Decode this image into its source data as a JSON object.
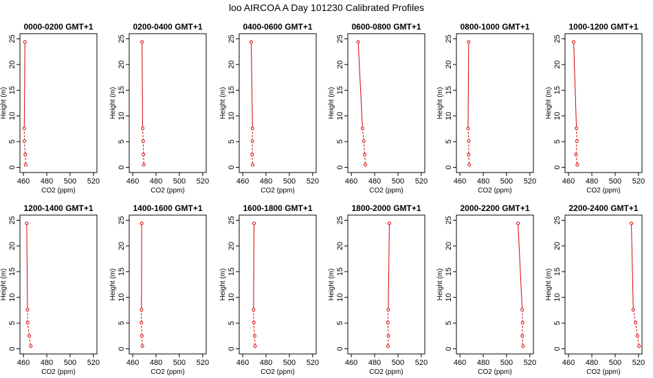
{
  "title": "loo AIRCOA A  Day 101230  Calibrated Profiles",
  "colors": {
    "series": "#d40000",
    "axis": "#000000",
    "background": "#ffffff"
  },
  "chart_data": [
    {
      "type": "line",
      "title": "0000-0200 GMT+1",
      "xlabel": "CO2 (ppm)",
      "ylabel": "Height (m)",
      "xlim": [
        457,
        523
      ],
      "ylim": [
        -1,
        26
      ],
      "xticks": [
        460,
        480,
        500,
        520
      ],
      "yticks": [
        0,
        5,
        10,
        15,
        20,
        25
      ],
      "x": [
        461.3,
        460.7,
        460.8,
        461.6,
        461.9
      ],
      "y": [
        24.4,
        7.6,
        5.1,
        2.5,
        0.5
      ]
    },
    {
      "type": "line",
      "title": "0200-0400 GMT+1",
      "xlabel": "CO2 (ppm)",
      "ylabel": "Height (m)",
      "xlim": [
        457,
        523
      ],
      "ylim": [
        -1,
        26
      ],
      "xticks": [
        460,
        480,
        500,
        520
      ],
      "yticks": [
        0,
        5,
        10,
        15,
        20,
        25
      ],
      "x": [
        468.0,
        468.5,
        469.0,
        469.2,
        469.5
      ],
      "y": [
        24.4,
        7.6,
        5.1,
        2.5,
        0.5
      ]
    },
    {
      "type": "line",
      "title": "0400-0600 GMT+1",
      "xlabel": "CO2 (ppm)",
      "ylabel": "Height (m)",
      "xlim": [
        457,
        523
      ],
      "ylim": [
        -1,
        26
      ],
      "xticks": [
        460,
        480,
        500,
        520
      ],
      "yticks": [
        0,
        5,
        10,
        15,
        20,
        25
      ],
      "x": [
        467.3,
        468.4,
        468.3,
        468.1,
        468.5
      ],
      "y": [
        24.4,
        7.6,
        5.1,
        2.5,
        0.5
      ]
    },
    {
      "type": "line",
      "title": "0600-0800 GMT+1",
      "xlabel": "CO2 (ppm)",
      "ylabel": "Height (m)",
      "xlim": [
        457,
        523
      ],
      "ylim": [
        -1,
        26
      ],
      "xticks": [
        460,
        480,
        500,
        520
      ],
      "yticks": [
        0,
        5,
        10,
        15,
        20,
        25
      ],
      "x": [
        465.9,
        469.6,
        470.7,
        471.5,
        472.0
      ],
      "y": [
        24.4,
        7.6,
        5.1,
        2.5,
        0.5
      ]
    },
    {
      "type": "line",
      "title": "0800-1000 GMT+1",
      "xlabel": "CO2 (ppm)",
      "ylabel": "Height (m)",
      "xlim": [
        457,
        523
      ],
      "ylim": [
        -1,
        26
      ],
      "xticks": [
        460,
        480,
        500,
        520
      ],
      "yticks": [
        0,
        5,
        10,
        15,
        20,
        25
      ],
      "x": [
        467.5,
        467.0,
        467.6,
        467.5,
        468.0
      ],
      "y": [
        24.4,
        7.6,
        5.1,
        2.5,
        0.5
      ]
    },
    {
      "type": "line",
      "title": "1000-1200 GMT+1",
      "xlabel": "CO2 (ppm)",
      "ylabel": "Height (m)",
      "xlim": [
        457,
        523
      ],
      "ylim": [
        -1,
        26
      ],
      "xticks": [
        460,
        480,
        500,
        520
      ],
      "yticks": [
        0,
        5,
        10,
        15,
        20,
        25
      ],
      "x": [
        464.4,
        466.8,
        467.2,
        466.4,
        467.5
      ],
      "y": [
        24.4,
        7.6,
        5.1,
        2.5,
        0.5
      ]
    },
    {
      "type": "line",
      "title": "1200-1400 GMT+1",
      "xlabel": "CO2 (ppm)",
      "ylabel": "Height (m)",
      "xlim": [
        457,
        523
      ],
      "ylim": [
        -1,
        26
      ],
      "xticks": [
        460,
        480,
        500,
        520
      ],
      "yticks": [
        0,
        5,
        10,
        15,
        20,
        25
      ],
      "x": [
        462.8,
        463.5,
        463.6,
        465.0,
        466.3
      ],
      "y": [
        24.4,
        7.6,
        5.1,
        2.5,
        0.5
      ]
    },
    {
      "type": "line",
      "title": "1400-1600 GMT+1",
      "xlabel": "CO2 (ppm)",
      "ylabel": "Height (m)",
      "xlim": [
        457,
        523
      ],
      "ylim": [
        -1,
        26
      ],
      "xticks": [
        460,
        480,
        500,
        520
      ],
      "yticks": [
        0,
        5,
        10,
        15,
        20,
        25
      ],
      "x": [
        467.7,
        467.5,
        467.4,
        467.8,
        468.3
      ],
      "y": [
        24.4,
        7.6,
        5.1,
        2.5,
        0.5
      ]
    },
    {
      "type": "line",
      "title": "1600-1800 GMT+1",
      "xlabel": "CO2 (ppm)",
      "ylabel": "Height (m)",
      "xlim": [
        457,
        523
      ],
      "ylim": [
        -1,
        26
      ],
      "xticks": [
        460,
        480,
        500,
        520
      ],
      "yticks": [
        0,
        5,
        10,
        15,
        20,
        25
      ],
      "x": [
        469.7,
        469.3,
        469.5,
        470.2,
        470.6
      ],
      "y": [
        24.4,
        7.6,
        5.1,
        2.5,
        0.5
      ]
    },
    {
      "type": "line",
      "title": "1800-2000 GMT+1",
      "xlabel": "CO2 (ppm)",
      "ylabel": "Height (m)",
      "xlim": [
        457,
        523
      ],
      "ylim": [
        -1,
        26
      ],
      "xticks": [
        460,
        480,
        500,
        520
      ],
      "yticks": [
        0,
        5,
        10,
        15,
        20,
        25
      ],
      "x": [
        492.6,
        491.7,
        491.3,
        491.8,
        491.5
      ],
      "y": [
        24.4,
        7.6,
        5.1,
        2.5,
        0.5
      ]
    },
    {
      "type": "line",
      "title": "2000-2200 GMT+1",
      "xlabel": "CO2 (ppm)",
      "ylabel": "Height (m)",
      "xlim": [
        457,
        523
      ],
      "ylim": [
        -1,
        26
      ],
      "xticks": [
        460,
        480,
        500,
        520
      ],
      "yticks": [
        0,
        5,
        10,
        15,
        20,
        25
      ],
      "x": [
        509.8,
        513.4,
        513.8,
        513.5,
        514.1
      ],
      "y": [
        24.4,
        7.6,
        5.1,
        2.5,
        0.5
      ]
    },
    {
      "type": "line",
      "title": "2200-2400 GMT+1",
      "xlabel": "CO2 (ppm)",
      "ylabel": "Height (m)",
      "xlim": [
        457,
        523
      ],
      "ylim": [
        -1,
        26
      ],
      "xticks": [
        460,
        480,
        500,
        520
      ],
      "yticks": [
        0,
        5,
        10,
        15,
        20,
        25
      ],
      "x": [
        513.9,
        515.5,
        517.5,
        519.1,
        520.4
      ],
      "y": [
        24.4,
        7.6,
        5.1,
        2.5,
        0.5
      ]
    }
  ]
}
